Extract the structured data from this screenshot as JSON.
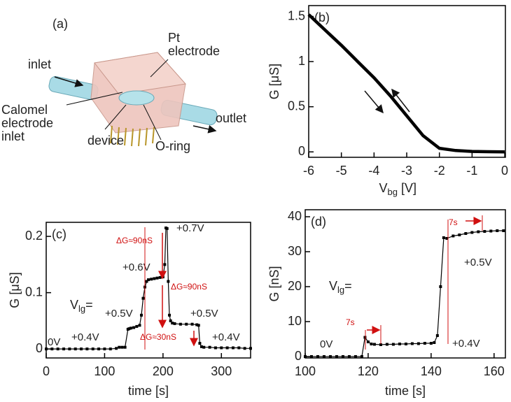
{
  "diagram": {
    "panel_label": "(a)",
    "labels": [
      [
        "Pt",
        "electrode"
      ],
      [
        "inlet"
      ],
      [
        "outlet"
      ],
      [
        "Calomel",
        "electrode",
        "inlet"
      ],
      [
        "device"
      ],
      [
        "O-ring"
      ]
    ]
  },
  "chart_data": [
    {
      "type": "line",
      "panel_label": "(b)",
      "ylabel": "G [μS]",
      "xlabel": {
        "main": "V",
        "sub": "bg",
        "unit": "[V]"
      },
      "marker": "none",
      "color": "#000000",
      "x": [
        -6,
        -5.5,
        -5,
        -4.5,
        -4,
        -3.5,
        -3,
        -2.5,
        -2,
        -1.5,
        -1,
        -0.5,
        0
      ],
      "values": [
        1.52,
        1.35,
        1.18,
        1.0,
        0.82,
        0.62,
        0.4,
        0.18,
        0.04,
        0.015,
        0.005,
        0.002,
        0
      ],
      "xlim": [
        -6,
        0.02
      ],
      "ylim": [
        -0.06,
        1.62
      ],
      "xticks": [
        -6,
        -5,
        -4,
        -3,
        -2,
        -1,
        0
      ],
      "yticks": [
        0,
        0.5,
        1,
        1.5
      ]
    },
    {
      "type": "line",
      "panel_label": "(c)",
      "ylabel": "G [μS]",
      "xlabel": "time [s]",
      "marker": "square",
      "color": "#000000",
      "x": [
        0,
        10,
        20,
        30,
        40,
        50,
        60,
        70,
        80,
        90,
        100,
        110,
        120,
        125,
        130,
        135,
        140,
        142,
        145,
        150,
        155,
        160,
        163,
        166,
        169,
        172,
        175,
        180,
        185,
        190,
        195,
        200,
        203,
        205,
        207,
        209,
        211,
        213,
        216,
        220,
        230,
        240,
        250,
        258,
        261,
        263,
        266,
        270,
        280,
        290,
        300,
        310,
        320,
        330,
        340,
        350
      ],
      "values": [
        0,
        0,
        0,
        0,
        0,
        0,
        0,
        0,
        0,
        0,
        0,
        0,
        0.001,
        0.003,
        0.003,
        0.003,
        0.035,
        0.036,
        0.037,
        0.038,
        0.04,
        0.042,
        0.06,
        0.09,
        0.11,
        0.12,
        0.123,
        0.124,
        0.125,
        0.126,
        0.127,
        0.128,
        0.15,
        0.215,
        0.214,
        0.12,
        0.06,
        0.05,
        0.046,
        0.045,
        0.044,
        0.044,
        0.044,
        0.043,
        0.042,
        0.01,
        0.004,
        0.003,
        0.003,
        0.002,
        0.002,
        0.002,
        0.002,
        0.002,
        0.001,
        0.001
      ],
      "xlim": [
        0,
        350
      ],
      "ylim": [
        -0.016,
        0.225
      ],
      "xticks": [
        0,
        100,
        200,
        300
      ],
      "yticks": [
        0,
        0.1,
        0.2
      ],
      "vlabel": {
        "main": "V",
        "sub": "lg",
        "tail": "="
      },
      "annotations": [
        "0V",
        "+0.4V",
        "+0.5V",
        "+0.6V",
        "+0.7V",
        "+0.5V",
        "+0.4V"
      ],
      "red_annotations": [
        "ΔG≈90nS",
        "ΔG≈90nS",
        "ΔG≈30nS"
      ]
    },
    {
      "type": "line",
      "panel_label": "(d)",
      "ylabel": "G [nS]",
      "xlabel": "time [s]",
      "marker": "square",
      "color": "#000000",
      "x": [
        100,
        102,
        104,
        106,
        108,
        110,
        112,
        114,
        116,
        118,
        119,
        120,
        121,
        122,
        124,
        126,
        128,
        130,
        132,
        134,
        136,
        138,
        140,
        141,
        142,
        143,
        144,
        145,
        147,
        149,
        151,
        153,
        155,
        157,
        159,
        161,
        163
      ],
      "values": [
        0,
        0,
        0,
        0,
        0,
        0,
        0,
        0,
        0,
        0,
        5.5,
        4.2,
        3.6,
        3.5,
        3.4,
        3.5,
        3.5,
        3.6,
        3.6,
        3.7,
        3.7,
        3.8,
        3.8,
        4.0,
        6,
        20,
        34,
        33.8,
        34.5,
        34.8,
        35.2,
        35.5,
        35.7,
        35.8,
        35.9,
        36,
        36
      ],
      "xlim": [
        100,
        163.6
      ],
      "ylim": [
        -0.4,
        42
      ],
      "xticks": [
        100,
        120,
        140,
        160
      ],
      "yticks": [
        0,
        10,
        20,
        30,
        40
      ],
      "vlabel": {
        "main": "V",
        "sub": "lg",
        "tail": "="
      },
      "annotations": [
        "0V",
        "+0.4V",
        "+0.5V"
      ],
      "red_annotations": [
        "7s",
        "7s"
      ]
    }
  ]
}
